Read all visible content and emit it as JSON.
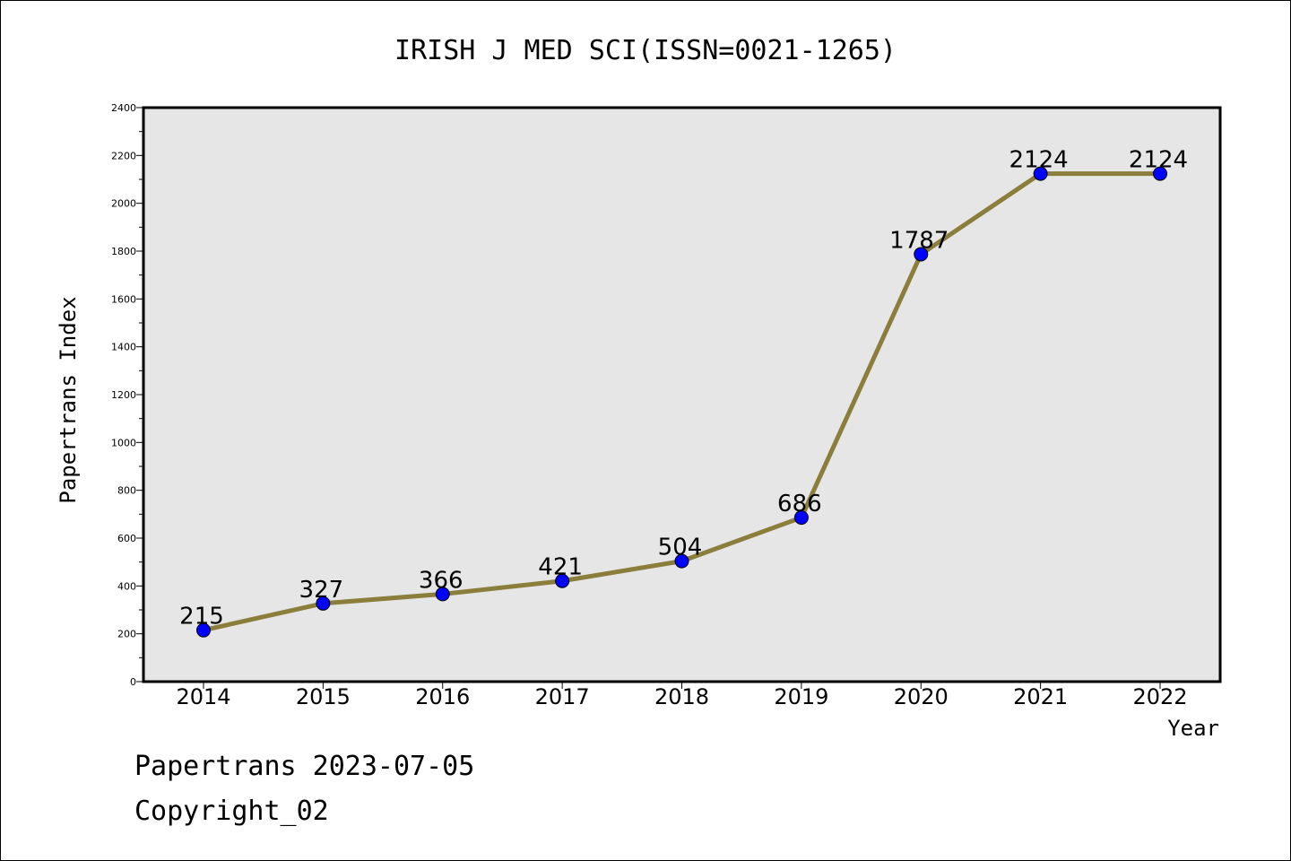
{
  "colors": {
    "line": "#8b7d3a",
    "marker": "#0000ff",
    "plot_bg": "#e6e6e6"
  },
  "chart_data": {
    "type": "line",
    "title": "IRISH J MED SCI(ISSN=0021-1265)",
    "xlabel": "Year",
    "ylabel": "Papertrans Index",
    "categories": [
      "2014",
      "2015",
      "2016",
      "2017",
      "2018",
      "2019",
      "2020",
      "2021",
      "2022"
    ],
    "values": [
      215,
      327,
      366,
      421,
      504,
      686,
      1787,
      2124,
      2124
    ],
    "data_labels": [
      "215",
      "327",
      "366",
      "421",
      "504",
      "686",
      "1787",
      "2124",
      "2124"
    ],
    "ylim": [
      0,
      2400
    ],
    "yticks": [
      "0",
      "200",
      "400",
      "600",
      "800",
      "1000",
      "1200",
      "1400",
      "1600",
      "1800",
      "2000",
      "2200",
      "2400"
    ],
    "grid": false,
    "legend": "none"
  },
  "footer": {
    "line1": "Papertrans 2023-07-05",
    "line2": "Copyright_02"
  }
}
